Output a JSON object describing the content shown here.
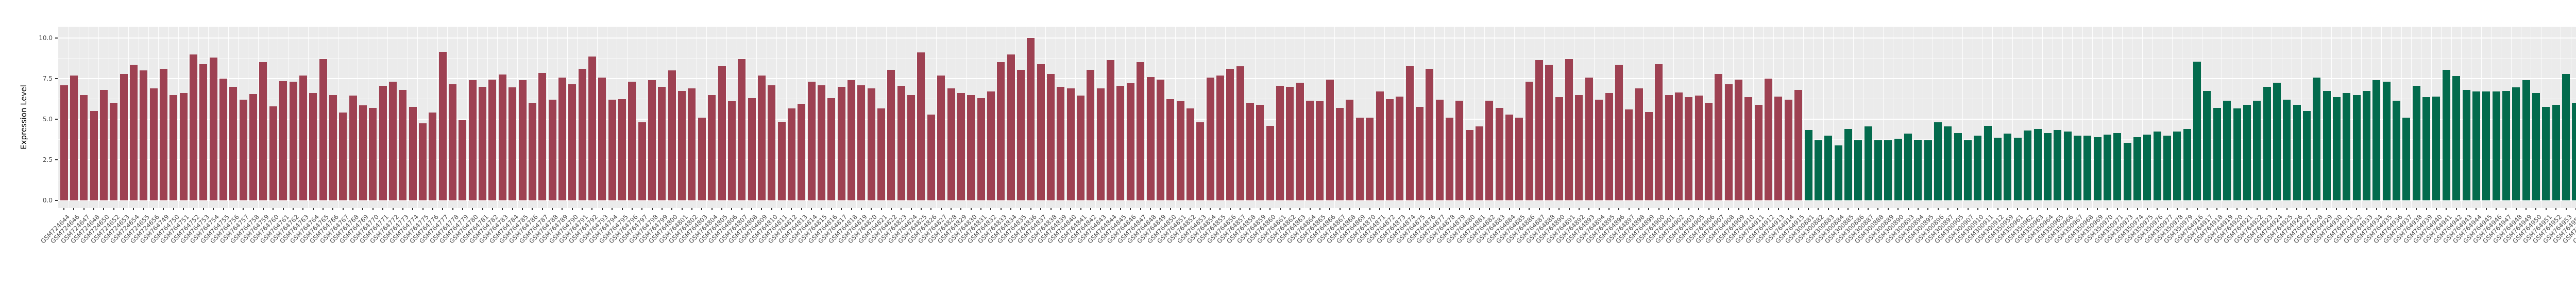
{
  "chart_data": {
    "type": "bar",
    "title": "",
    "xlabel": "",
    "ylabel": "Expression Level",
    "ylim": [
      0,
      10
    ],
    "ytick_values": [
      0.0,
      2.5,
      5.0,
      7.5,
      10.0
    ],
    "ytick_labels": [
      "0.0",
      "2.5",
      "5.0",
      "7.5",
      "10.0"
    ],
    "grid_minor_values": [
      1.25,
      3.75,
      6.25,
      8.75
    ],
    "legend_position": "none",
    "panel_background": "#EBEBEB",
    "gridline_color": "#FFFFFF",
    "axis_text_color": "#4D4D4D",
    "bar_groups": [
      {
        "name": "group-1-red",
        "color": "#9E4152",
        "start_index": 0,
        "end_index": 174
      },
      {
        "name": "group-2-green",
        "color": "#036B4D",
        "start_index": 175,
        "end_index": 260
      }
    ],
    "sample_ids": [
      "GSM724644",
      "GSM724646",
      "GSM724647",
      "GSM724648",
      "GSM724650",
      "GSM724652",
      "GSM724653",
      "GSM724654",
      "GSM724655",
      "GSM724656",
      "GSM764749",
      "GSM764750",
      "GSM764751",
      "GSM764752",
      "GSM764753",
      "GSM764754",
      "GSM764755",
      "GSM764756",
      "GSM764757",
      "GSM764758",
      "GSM764759",
      "GSM764760",
      "GSM764761",
      "GSM764762",
      "GSM764763",
      "GSM764764",
      "GSM764765",
      "GSM764766",
      "GSM764767",
      "GSM764768",
      "GSM764769",
      "GSM764770",
      "GSM764771",
      "GSM764772",
      "GSM764773",
      "GSM764774",
      "GSM764775",
      "GSM764776",
      "GSM764777",
      "GSM764778",
      "GSM764779",
      "GSM764780",
      "GSM764781",
      "GSM764782",
      "GSM764783",
      "GSM764784",
      "GSM764785",
      "GSM764786",
      "GSM764787",
      "GSM764788",
      "GSM764789",
      "GSM764790",
      "GSM764791",
      "GSM764792",
      "GSM764793",
      "GSM764794",
      "GSM764795",
      "GSM764796",
      "GSM764797",
      "GSM764798",
      "GSM764799",
      "GSM764800",
      "GSM764801",
      "GSM764802",
      "GSM764803",
      "GSM764804",
      "GSM764805",
      "GSM764806",
      "GSM764807",
      "GSM764808",
      "GSM764809",
      "GSM764810",
      "GSM764811",
      "GSM764812",
      "GSM764813",
      "GSM764814",
      "GSM764815",
      "GSM764816",
      "GSM764817",
      "GSM764818",
      "GSM764819",
      "GSM764820",
      "GSM764821",
      "GSM764822",
      "GSM764823",
      "GSM764824",
      "GSM764825",
      "GSM764826",
      "GSM764827",
      "GSM764828",
      "GSM764829",
      "GSM764830",
      "GSM764831",
      "GSM764832",
      "GSM764833",
      "GSM764834",
      "GSM764835",
      "GSM764836",
      "GSM764837",
      "GSM764838",
      "GSM764839",
      "GSM764840",
      "GSM764841",
      "GSM764842",
      "GSM764843",
      "GSM764844",
      "GSM764845",
      "GSM764846",
      "GSM764847",
      "GSM764848",
      "GSM764849",
      "GSM764850",
      "GSM764851",
      "GSM764852",
      "GSM764853",
      "GSM764854",
      "GSM764855",
      "GSM764856",
      "GSM764857",
      "GSM764858",
      "GSM764859",
      "GSM764860",
      "GSM764861",
      "GSM764862",
      "GSM764863",
      "GSM764864",
      "GSM764865",
      "GSM764866",
      "GSM764867",
      "GSM764868",
      "GSM764869",
      "GSM764870",
      "GSM764871",
      "GSM764872",
      "GSM764873",
      "GSM764874",
      "GSM764875",
      "GSM764876",
      "GSM764877",
      "GSM764878",
      "GSM764879",
      "GSM764880",
      "GSM764881",
      "GSM764882",
      "GSM764883",
      "GSM764884",
      "GSM764885",
      "GSM764886",
      "GSM764887",
      "GSM764888",
      "GSM764890",
      "GSM764891",
      "GSM764892",
      "GSM764893",
      "GSM764894",
      "GSM764895",
      "GSM764896",
      "GSM764897",
      "GSM764898",
      "GSM764899",
      "GSM764900",
      "GSM764901",
      "GSM764902",
      "GSM764903",
      "GSM764905",
      "GSM764906",
      "GSM764907",
      "GSM764908",
      "GSM764909",
      "GSM764910",
      "GSM764911",
      "GSM764912",
      "GSM764913",
      "GSM764914",
      "GSM764915",
      "GSM300881",
      "GSM300882",
      "GSM300883",
      "GSM300884",
      "GSM300885",
      "GSM300886",
      "GSM300887",
      "GSM300888",
      "GSM300889",
      "GSM300890",
      "GSM300893",
      "GSM300894",
      "GSM300895",
      "GSM300896",
      "GSM300897",
      "GSM300905",
      "GSM300907",
      "GSM300910",
      "GSM300911",
      "GSM300912",
      "GSM350959",
      "GSM350961",
      "GSM350962",
      "GSM350963",
      "GSM350964",
      "GSM350965",
      "GSM350966",
      "GSM350967",
      "GSM350968",
      "GSM350969",
      "GSM350970",
      "GSM350971",
      "GSM350973",
      "GSM350974",
      "GSM350975",
      "GSM350976",
      "GSM350977",
      "GSM350978",
      "GSM350979",
      "GSM764916",
      "GSM764917",
      "GSM764918",
      "GSM764919",
      "GSM764920",
      "GSM764921",
      "GSM764922",
      "GSM764923",
      "GSM764924",
      "GSM764925",
      "GSM764926",
      "GSM764927",
      "GSM764928",
      "GSM764929",
      "GSM764930",
      "GSM764931",
      "GSM764932",
      "GSM764933",
      "GSM764934",
      "GSM764935",
      "GSM764936",
      "GSM764937",
      "GSM764938",
      "GSM764939",
      "GSM764940",
      "GSM764941",
      "GSM764942",
      "GSM764943",
      "GSM764944",
      "GSM764945",
      "GSM764946",
      "GSM764947",
      "GSM764948",
      "GSM764949",
      "GSM764950",
      "GSM764951",
      "GSM764952",
      "GSM764953",
      "GSM764954",
      "GSM764955",
      "GSM764956",
      "GSM764957",
      "GSM764958",
      "GSM764959",
      "GSM764960",
      "GSM80748",
      "GSM80749"
    ],
    "values": [
      7.1,
      7.7,
      6.5,
      5.5,
      6.8,
      6.0,
      7.8,
      8.35,
      8.0,
      6.9,
      8.1,
      6.5,
      6.6,
      9.0,
      8.4,
      8.8,
      7.5,
      7.0,
      6.2,
      6.55,
      8.5,
      5.8,
      7.35,
      7.3,
      7.7,
      6.6,
      8.7,
      6.5,
      5.4,
      6.45,
      5.85,
      5.7,
      7.05,
      7.3,
      6.8,
      5.75,
      4.75,
      5.4,
      9.15,
      7.15,
      4.95,
      7.4,
      7.0,
      7.45,
      7.75,
      6.95,
      7.4,
      6.0,
      7.85,
      6.2,
      7.55,
      7.15,
      8.1,
      8.85,
      7.55,
      6.2,
      6.25,
      7.3,
      4.8,
      7.4,
      7.0,
      8.0,
      6.75,
      6.9,
      5.1,
      6.5,
      8.3,
      6.1,
      8.7,
      6.3,
      7.7,
      7.1,
      4.85,
      5.65,
      5.95,
      7.3,
      7.1,
      6.3,
      7.0,
      7.4,
      7.1,
      6.9,
      5.65,
      8.05,
      7.05,
      6.5,
      9.1,
      5.3,
      7.7,
      6.9,
      6.6,
      6.5,
      6.3,
      6.7,
      8.5,
      9.0,
      8.05,
      10.0,
      8.4,
      7.8,
      7.0,
      6.9,
      6.45,
      8.05,
      6.9,
      8.65,
      7.05,
      7.2,
      8.5,
      7.6,
      7.45,
      6.25,
      6.1,
      5.65,
      4.8,
      7.55,
      7.7,
      8.1,
      8.25,
      6.0,
      5.9,
      4.6,
      7.05,
      7.0,
      7.25,
      6.15,
      6.1,
      7.45,
      5.7,
      6.2,
      5.1,
      5.1,
      6.7,
      6.25,
      6.4,
      8.3,
      5.75,
      8.1,
      6.2,
      5.1,
      6.15,
      4.35,
      4.55,
      6.15,
      5.7,
      5.3,
      5.1,
      7.3,
      8.65,
      8.35,
      6.35,
      8.7,
      6.5,
      7.55,
      6.2,
      6.6,
      8.35,
      5.6,
      6.9,
      5.45,
      8.4,
      6.5,
      6.65,
      6.35,
      6.45,
      6.0,
      7.8,
      7.15,
      7.45,
      6.35,
      5.9,
      7.5,
      6.4,
      6.2,
      6.8,
      4.35,
      3.7,
      4.0,
      3.4,
      4.4,
      3.7,
      4.55,
      3.7,
      3.7,
      3.8,
      4.1,
      3.75,
      3.7,
      4.8,
      4.55,
      4.15,
      3.7,
      4.0,
      4.6,
      3.85,
      4.1,
      3.85,
      4.3,
      4.4,
      4.15,
      4.35,
      4.25,
      4.0,
      4.0,
      3.9,
      4.05,
      4.15,
      3.55,
      3.9,
      4.05,
      4.25,
      4.0,
      4.25,
      4.4,
      8.55,
      6.75,
      5.7,
      6.15,
      5.65,
      5.9,
      6.15,
      7.0,
      7.25,
      6.2,
      5.9,
      5.5,
      7.55,
      6.75,
      6.35,
      6.6,
      6.5,
      6.75,
      7.4,
      7.3,
      6.15,
      5.1,
      7.05,
      6.35,
      6.4,
      8.05,
      7.65,
      6.8,
      6.7,
      6.7,
      6.7,
      6.75,
      6.95,
      7.4,
      6.6,
      5.75,
      5.9,
      7.8,
      6.0,
      5.4,
      7.3,
      6.15,
      6.5,
      6.95,
      7.4,
      7.25,
      7.45
    ]
  }
}
